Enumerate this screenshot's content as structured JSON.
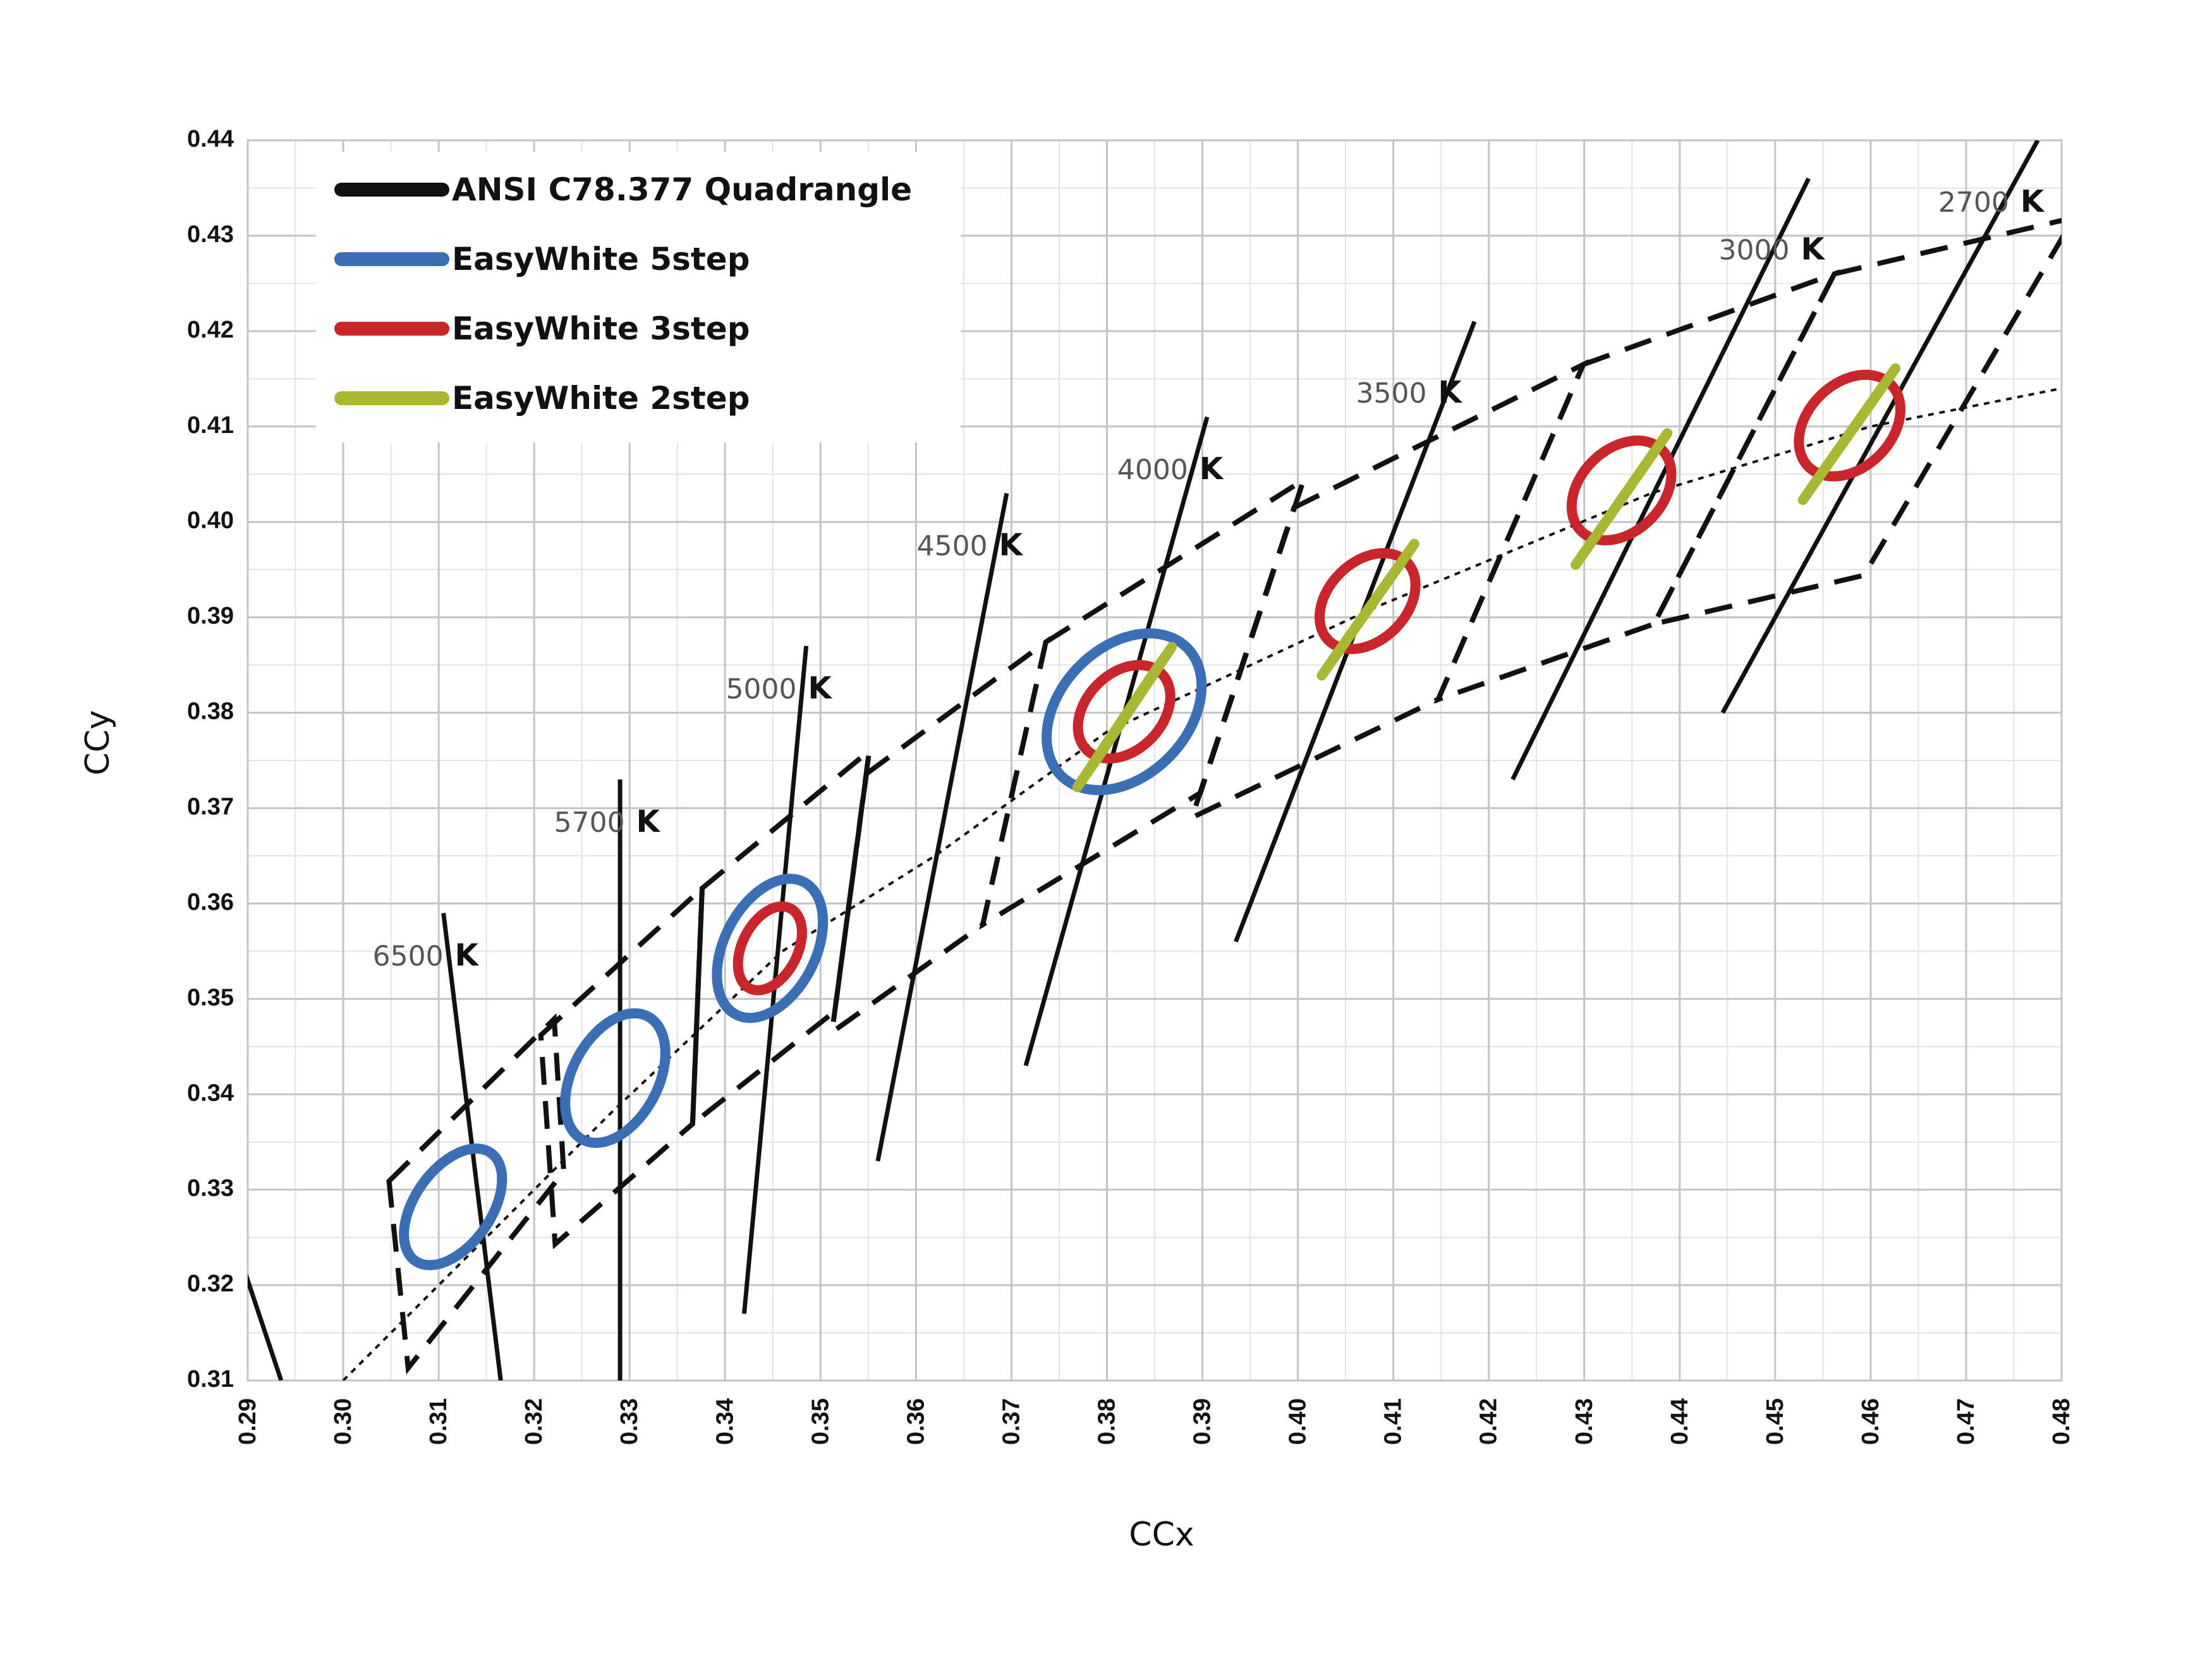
{
  "chart_data": {
    "type": "scatter",
    "title": "",
    "xlabel": "CCx",
    "ylabel": "CCy",
    "xlim": [
      0.29,
      0.48
    ],
    "ylim": [
      0.31,
      0.44
    ],
    "xticks": [
      "0.29",
      "0.30",
      "0.31",
      "0.32",
      "0.33",
      "0.34",
      "0.35",
      "0.36",
      "0.37",
      "0.38",
      "0.39",
      "0.40",
      "0.41",
      "0.42",
      "0.43",
      "0.44",
      "0.45",
      "0.46",
      "0.47",
      "0.48"
    ],
    "yticks": [
      "0.31",
      "0.32",
      "0.33",
      "0.34",
      "0.35",
      "0.36",
      "0.37",
      "0.38",
      "0.39",
      "0.40",
      "0.41",
      "0.42",
      "0.43",
      "0.44"
    ],
    "grid": true,
    "legend_position": "top-left",
    "legend": [
      {
        "label": "ANSI C78.377 Quadrangle",
        "color": "#111111"
      },
      {
        "label": "EasyWhite 5step",
        "color": "#3a6fb5"
      },
      {
        "label": "EasyWhite 3step",
        "color": "#c8262a"
      },
      {
        "label": "EasyWhite 2step",
        "color": "#a8b832"
      }
    ],
    "blackbody_locus": [
      [
        0.3,
        0.31
      ],
      [
        0.313,
        0.323
      ],
      [
        0.328,
        0.338
      ],
      [
        0.346,
        0.355
      ],
      [
        0.362,
        0.365
      ],
      [
        0.38,
        0.378
      ],
      [
        0.408,
        0.391
      ],
      [
        0.437,
        0.403
      ],
      [
        0.46,
        0.41
      ],
      [
        0.48,
        0.414
      ]
    ],
    "isotherms": [
      {
        "num": "6500",
        "unit": "K",
        "label_at": [
          0.3105,
          0.3535
        ],
        "line": [
          [
            0.3105,
            0.359
          ],
          [
            0.3165,
            0.31
          ]
        ]
      },
      {
        "num": "5700",
        "unit": "K",
        "label_at": [
          0.3295,
          0.3675
        ],
        "line": [
          [
            0.329,
            0.373
          ],
          [
            0.329,
            0.31
          ]
        ]
      },
      {
        "num": "5000",
        "unit": "K",
        "label_at": [
          0.3475,
          0.3815
        ],
        "line": [
          [
            0.3485,
            0.387
          ],
          [
            0.342,
            0.317
          ]
        ]
      },
      {
        "num": "4500",
        "unit": "K",
        "label_at": [
          0.3675,
          0.3965
        ],
        "line": [
          [
            0.3695,
            0.403
          ],
          [
            0.356,
            0.333
          ]
        ]
      },
      {
        "num": "4000",
        "unit": "K",
        "label_at": [
          0.3885,
          0.4045
        ],
        "line": [
          [
            0.3905,
            0.411
          ],
          [
            0.3715,
            0.343
          ]
        ]
      },
      {
        "num": "3500",
        "unit": "K",
        "label_at": [
          0.4135,
          0.4125
        ],
        "line": [
          [
            0.4185,
            0.421
          ],
          [
            0.3935,
            0.356
          ]
        ]
      },
      {
        "num": "3000",
        "unit": "K",
        "label_at": [
          0.4515,
          0.4275
        ],
        "line": [
          [
            0.4535,
            0.436
          ],
          [
            0.4225,
            0.373
          ]
        ]
      },
      {
        "num": "2700",
        "unit": "K",
        "label_at": [
          0.4745,
          0.4325
        ],
        "line": [
          [
            0.4775,
            0.44
          ],
          [
            0.4445,
            0.38
          ]
        ]
      }
    ],
    "quadrangles": [
      {
        "cct": "6500 K",
        "points": [
          [
            0.3048,
            0.3309
          ],
          [
            0.3221,
            0.3479
          ],
          [
            0.3231,
            0.3319
          ],
          [
            0.3068,
            0.3113
          ]
        ]
      },
      {
        "cct": "5700 K",
        "points": [
          [
            0.3207,
            0.3462
          ],
          [
            0.3376,
            0.3616
          ],
          [
            0.3366,
            0.3369
          ],
          [
            0.3222,
            0.3243
          ]
        ]
      },
      {
        "cct": "5000 K",
        "points": [
          [
            0.3376,
            0.3616
          ],
          [
            0.3551,
            0.376
          ],
          [
            0.3515,
            0.3487
          ],
          [
            0.3366,
            0.3369
          ]
        ]
      },
      {
        "cct": "4500 K",
        "points": [
          [
            0.3548,
            0.3736
          ],
          [
            0.3736,
            0.3874
          ],
          [
            0.367,
            0.3578
          ],
          [
            0.3512,
            0.3465
          ]
        ]
      },
      {
        "cct": "4000 K",
        "points": [
          [
            0.3736,
            0.3874
          ],
          [
            0.4006,
            0.4044
          ],
          [
            0.3898,
            0.3716
          ],
          [
            0.367,
            0.3578
          ]
        ]
      },
      {
        "cct": "3500 K",
        "points": [
          [
            0.3996,
            0.4015
          ],
          [
            0.4299,
            0.4165
          ],
          [
            0.4147,
            0.3814
          ],
          [
            0.3889,
            0.369
          ]
        ]
      },
      {
        "cct": "3000 K",
        "points": [
          [
            0.4299,
            0.4165
          ],
          [
            0.4562,
            0.426
          ],
          [
            0.4373,
            0.3893
          ],
          [
            0.4147,
            0.3814
          ]
        ]
      },
      {
        "cct": "2700 K",
        "points": [
          [
            0.4562,
            0.426
          ],
          [
            0.4813,
            0.4319
          ],
          [
            0.4593,
            0.3944
          ],
          [
            0.4373,
            0.3893
          ]
        ]
      }
    ],
    "easywhite_5step": [
      {
        "cct": "6500 K",
        "center": [
          0.3115,
          0.3282
        ],
        "a": 0.0069,
        "b": 0.004,
        "angle_deg": 55
      },
      {
        "cct": "5700 K",
        "center": [
          0.3285,
          0.3417
        ],
        "a": 0.0073,
        "b": 0.0045,
        "angle_deg": 62
      },
      {
        "cct": "5000 K",
        "center": [
          0.3447,
          0.3553
        ],
        "a": 0.0078,
        "b": 0.0048,
        "angle_deg": 63
      },
      {
        "cct": "4000 K",
        "center": [
          0.3818,
          0.3801
        ],
        "a": 0.0094,
        "b": 0.0067,
        "angle_deg": 46
      }
    ],
    "easywhite_3step": [
      {
        "cct": "5000 K",
        "center": [
          0.3447,
          0.3553
        ],
        "a": 0.0047,
        "b": 0.0029,
        "angle_deg": 63
      },
      {
        "cct": "4000 K",
        "center": [
          0.3818,
          0.3801
        ],
        "a": 0.0056,
        "b": 0.004,
        "angle_deg": 46
      },
      {
        "cct": "3500 K",
        "center": [
          0.4073,
          0.3917
        ],
        "a": 0.0058,
        "b": 0.0041,
        "angle_deg": 45
      },
      {
        "cct": "3000 K",
        "center": [
          0.4339,
          0.4033
        ],
        "a": 0.006,
        "b": 0.0043,
        "angle_deg": 45
      },
      {
        "cct": "2700 K",
        "center": [
          0.4578,
          0.4101
        ],
        "a": 0.0061,
        "b": 0.0044,
        "angle_deg": 45
      }
    ],
    "easywhite_2step": [
      {
        "cct": "4000 K",
        "points": [
          [
            0.3792,
            0.3755
          ],
          [
            0.3868,
            0.3869
          ],
          [
            0.3845,
            0.3836
          ],
          [
            0.3769,
            0.3722
          ]
        ]
      },
      {
        "cct": "3500 K",
        "points": [
          [
            0.4048,
            0.3872
          ],
          [
            0.4122,
            0.3977
          ],
          [
            0.4099,
            0.3944
          ],
          [
            0.4025,
            0.3839
          ]
        ]
      },
      {
        "cct": "3000 K",
        "points": [
          [
            0.4314,
            0.3988
          ],
          [
            0.4387,
            0.4093
          ],
          [
            0.4364,
            0.406
          ],
          [
            0.4291,
            0.3955
          ]
        ]
      },
      {
        "cct": "2700 K",
        "points": [
          [
            0.4552,
            0.4056
          ],
          [
            0.4626,
            0.4161
          ],
          [
            0.4603,
            0.4128
          ],
          [
            0.4529,
            0.4023
          ]
        ]
      }
    ]
  }
}
